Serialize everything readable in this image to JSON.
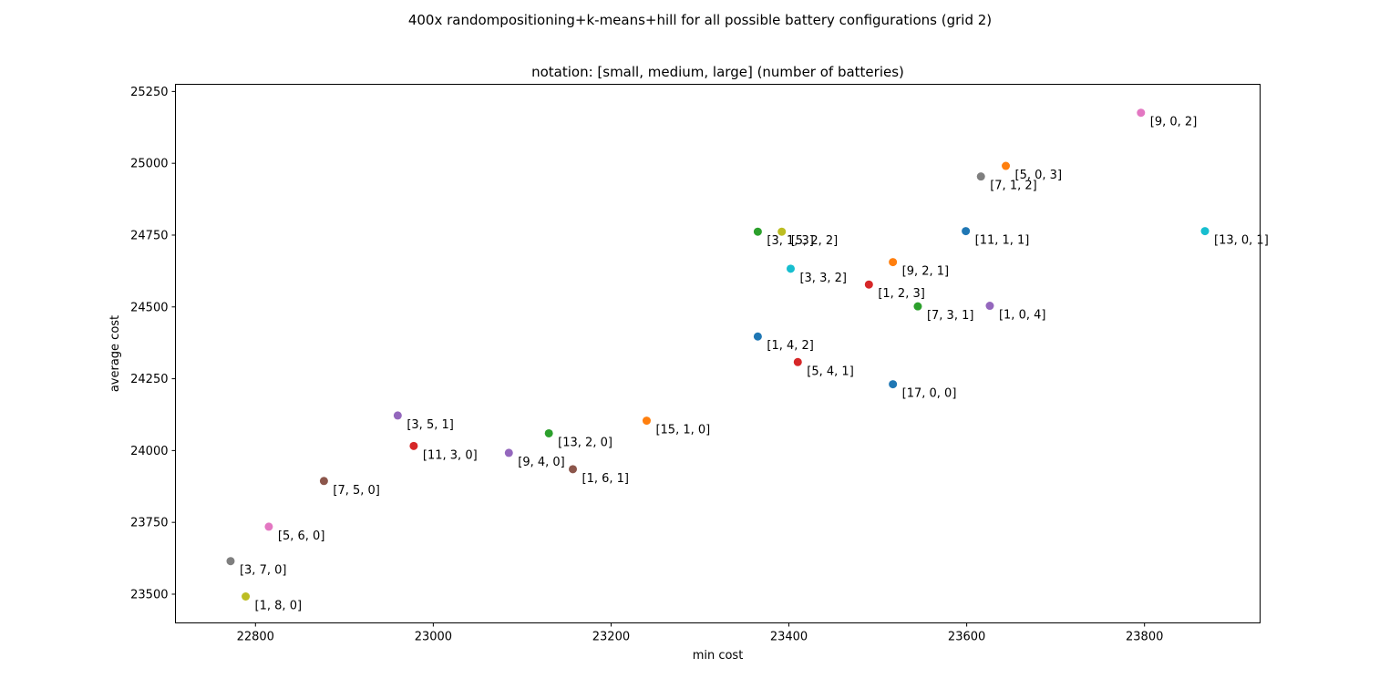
{
  "chart_data": {
    "type": "scatter",
    "suptitle": "400x randompositioning+k-means+hill for all possible battery configurations (grid 2)",
    "title": "notation: [small, medium, large] (number of batteries)",
    "xlabel": "min cost",
    "ylabel": "average cost",
    "xlim": [
      22710,
      23930
    ],
    "ylim": [
      23400,
      25275
    ],
    "x_ticks": [
      22800,
      23000,
      23200,
      23400,
      23600,
      23800
    ],
    "y_ticks": [
      23500,
      23750,
      24000,
      24250,
      24500,
      24750,
      25000,
      25250
    ],
    "grid": false,
    "points": [
      {
        "label": "[1, 4, 2]",
        "x": 23365,
        "y": 24397,
        "color": "#1f77b4"
      },
      {
        "label": "[17, 0, 0]",
        "x": 23517,
        "y": 24231,
        "color": "#1f77b4"
      },
      {
        "label": "[11, 1, 1]",
        "x": 23599,
        "y": 24764,
        "color": "#1f77b4"
      },
      {
        "label": "[15, 1, 0]",
        "x": 23240,
        "y": 24104,
        "color": "#ff7f0e"
      },
      {
        "label": "[9, 2, 1]",
        "x": 23517,
        "y": 24656,
        "color": "#ff7f0e"
      },
      {
        "label": "[5, 0, 3]",
        "x": 23644,
        "y": 24991,
        "color": "#ff7f0e"
      },
      {
        "label": "[13, 2, 0]",
        "x": 23130,
        "y": 24060,
        "color": "#2ca02c"
      },
      {
        "label": "[3, 1, 3]",
        "x": 23365,
        "y": 24762,
        "color": "#2ca02c"
      },
      {
        "label": "[7, 3, 1]",
        "x": 23545,
        "y": 24502,
        "color": "#2ca02c"
      },
      {
        "label": "[11, 3, 0]",
        "x": 22978,
        "y": 24016,
        "color": "#d62728"
      },
      {
        "label": "[5, 4, 1]",
        "x": 23410,
        "y": 24308,
        "color": "#d62728"
      },
      {
        "label": "[1, 2, 3]",
        "x": 23490,
        "y": 24578,
        "color": "#d62728"
      },
      {
        "label": "[3, 5, 1]",
        "x": 22960,
        "y": 24122,
        "color": "#9467bd"
      },
      {
        "label": "[9, 4, 0]",
        "x": 23085,
        "y": 23992,
        "color": "#9467bd"
      },
      {
        "label": "[1, 0, 4]",
        "x": 23626,
        "y": 24504,
        "color": "#9467bd"
      },
      {
        "label": "[7, 5, 0]",
        "x": 22877,
        "y": 23894,
        "color": "#8c564b"
      },
      {
        "label": "[1, 6, 1]",
        "x": 23157,
        "y": 23935,
        "color": "#8c564b"
      },
      {
        "label": "[5, 6, 0]",
        "x": 22815,
        "y": 23735,
        "color": "#e377c2"
      },
      {
        "label": "[9, 0, 2]",
        "x": 23796,
        "y": 25176,
        "color": "#e377c2"
      },
      {
        "label": "[3, 7, 0]",
        "x": 22772,
        "y": 23615,
        "color": "#7f7f7f"
      },
      {
        "label": "[7, 1, 2]",
        "x": 23616,
        "y": 24954,
        "color": "#7f7f7f"
      },
      {
        "label": "[1, 8, 0]",
        "x": 22789,
        "y": 23492,
        "color": "#bcbd22"
      },
      {
        "label": "[5, 2, 2]",
        "x": 23392,
        "y": 24762,
        "color": "#bcbd22"
      },
      {
        "label": "[3, 3, 2]",
        "x": 23402,
        "y": 24633,
        "color": "#17becf"
      },
      {
        "label": "[13, 0, 1]",
        "x": 23868,
        "y": 24764,
        "color": "#17becf"
      }
    ]
  }
}
